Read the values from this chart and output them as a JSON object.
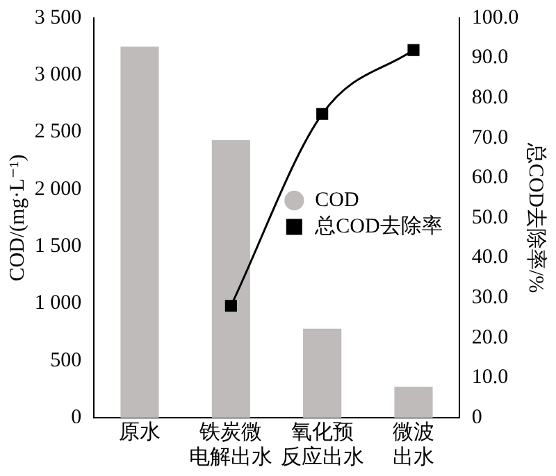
{
  "chart_data": {
    "type": "bar",
    "categories": [
      "原水",
      "铁炭微电解出水",
      "氧化预反应出水",
      "微波出水"
    ],
    "ylabel": "COD/(mg·L⁻¹)",
    "y2label": "总COD去除率/%",
    "ylim": [
      0,
      3500
    ],
    "yticks": [
      0,
      {
        "value": 500,
        "label": "500"
      },
      {
        "value": 1000,
        "label": "1 000"
      },
      {
        "value": 1500,
        "label": "1 500"
      },
      {
        "value": 2000,
        "label": "2 000"
      },
      {
        "value": 2500,
        "label": "2 500"
      },
      {
        "value": 3000,
        "label": "3 000"
      },
      {
        "value": 3500,
        "label": "3 500"
      }
    ],
    "y2lim": [
      0,
      100
    ],
    "y2ticks": [
      {
        "value": 0,
        "label": "0"
      },
      {
        "value": 10,
        "label": "10.0"
      },
      {
        "value": 20,
        "label": "20.0"
      },
      {
        "value": 30,
        "label": "30.0"
      },
      {
        "value": 40,
        "label": "40.0"
      },
      {
        "value": 50,
        "label": "50.0"
      },
      {
        "value": 60,
        "label": "60.0"
      },
      {
        "value": 70,
        "label": "70.0"
      },
      {
        "value": 80,
        "label": "80.0"
      },
      {
        "value": 90,
        "label": "90.0"
      },
      {
        "value": 100,
        "label": "100.0"
      }
    ],
    "series": [
      {
        "name": "COD",
        "color": "#bfbbbb",
        "values": [
          3250,
          2430,
          780,
          270
        ]
      },
      {
        "name": "总COD去除率",
        "type": "line",
        "axis": "y2",
        "color": "#000000",
        "values": [
          null,
          28,
          76,
          92
        ]
      }
    ],
    "marker": "square",
    "line_style": "solid",
    "grid": false,
    "legend": "right"
  }
}
